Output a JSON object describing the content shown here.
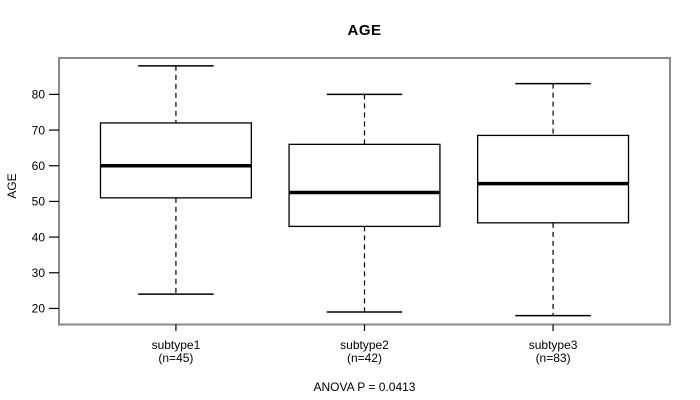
{
  "title": "AGE",
  "ylabel": "AGE",
  "footer": "ANOVA P = 0.0413",
  "colors": {
    "background": "#ffffff",
    "frame": "#8a8a8a",
    "line": "#000000",
    "box_fill": "#ffffff",
    "text": "#000000"
  },
  "chart_data": {
    "type": "boxplot",
    "title": "AGE",
    "ylabel": "AGE",
    "xlabel": "",
    "annotation": "ANOVA P = 0.0413",
    "grid": false,
    "legend": false,
    "ylim": [
      15.5,
      90.2
    ],
    "yticks": [
      20,
      30,
      40,
      50,
      60,
      70,
      80
    ],
    "groups": [
      {
        "label": "subtype1",
        "sublabel": "(n=45)",
        "n": 45,
        "whisker_low": 24,
        "q1": 51,
        "median": 60,
        "q3": 72,
        "whisker_high": 88
      },
      {
        "label": "subtype2",
        "sublabel": "(n=42)",
        "n": 42,
        "whisker_low": 19,
        "q1": 43,
        "median": 52.5,
        "q3": 66,
        "whisker_high": 80
      },
      {
        "label": "subtype3",
        "sublabel": "(n=83)",
        "n": 83,
        "whisker_low": 18,
        "q1": 44,
        "median": 55,
        "q3": 68.5,
        "whisker_high": 83
      }
    ]
  }
}
